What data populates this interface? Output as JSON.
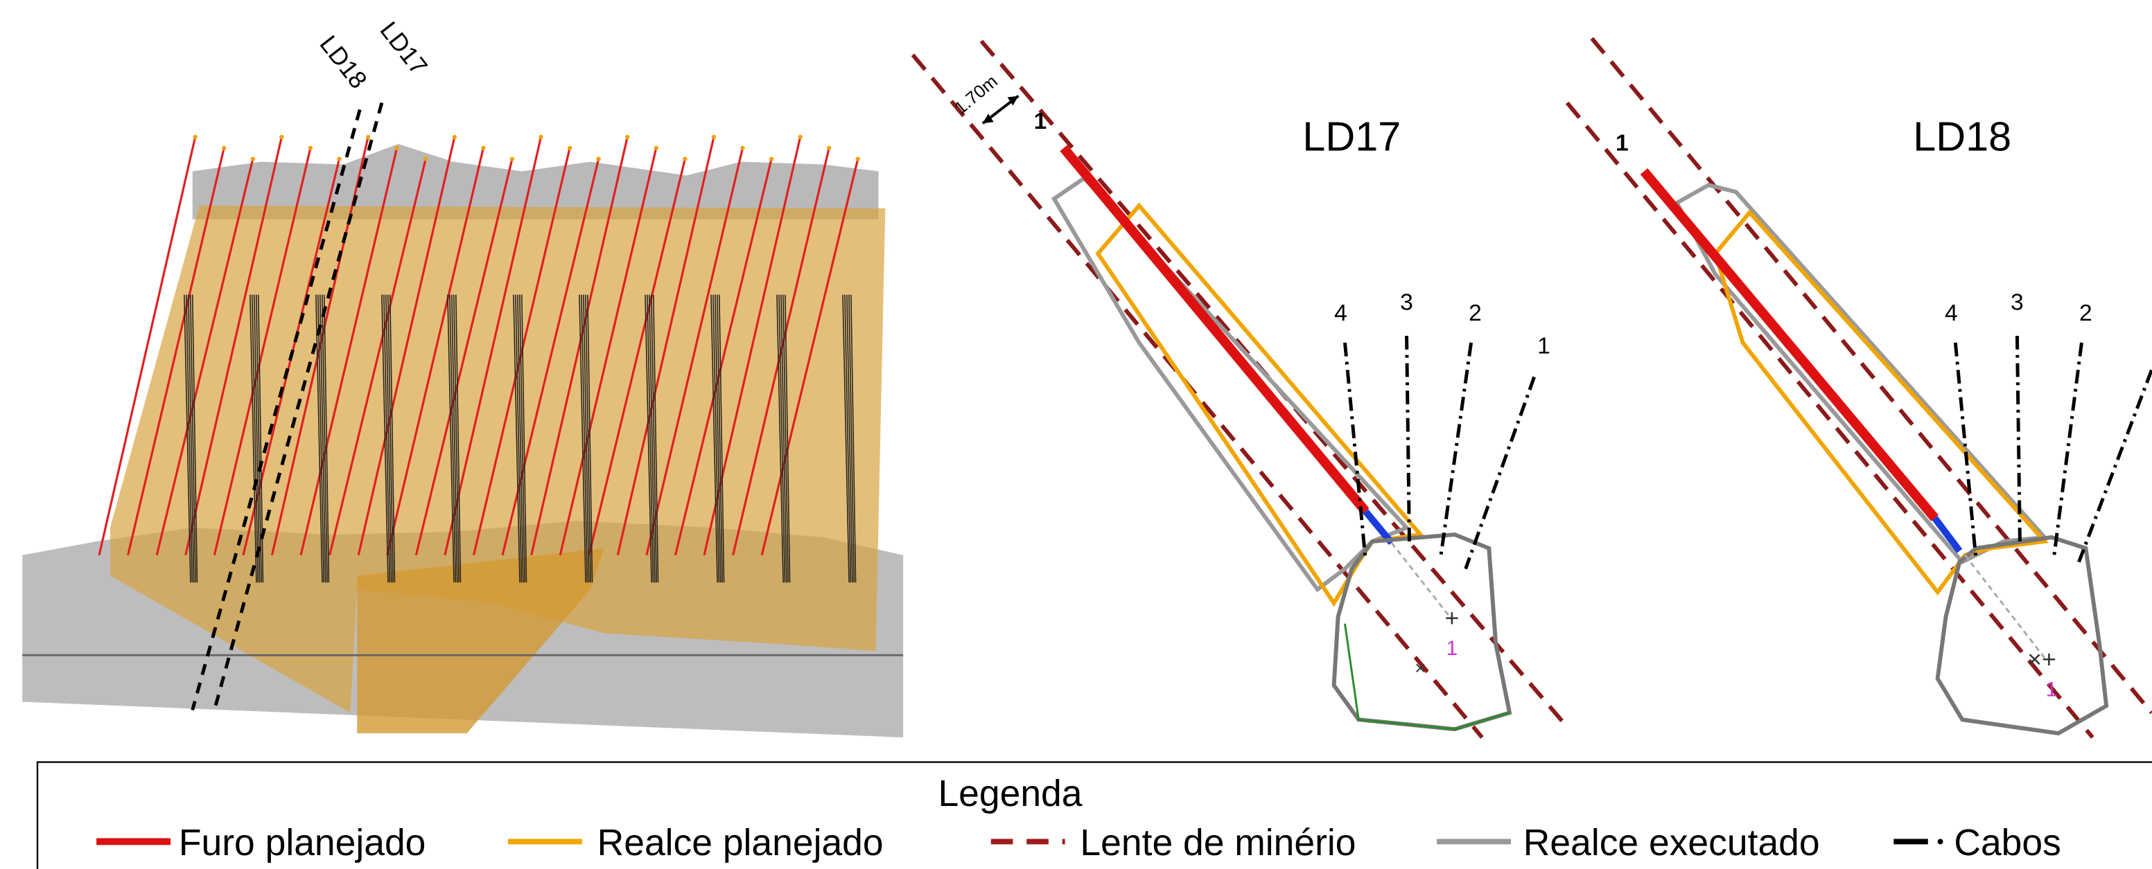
{
  "view3d": {
    "labels": [
      "LD18",
      "LD17"
    ]
  },
  "sections": [
    {
      "title": "LD17",
      "spacing_label": "1.70m",
      "hole_label": "1",
      "cable_labels": [
        "4",
        "3",
        "2",
        "1"
      ],
      "point_label": "1"
    },
    {
      "title": "LD18",
      "hole_label": "1",
      "cable_labels": [
        "4",
        "3",
        "2"
      ],
      "point_label": "1"
    }
  ],
  "legend": {
    "title": "Legenda",
    "items": [
      "Furo planejado",
      "Realce planejado",
      "Lente de minério",
      "Realce executado",
      "Cabos"
    ]
  }
}
